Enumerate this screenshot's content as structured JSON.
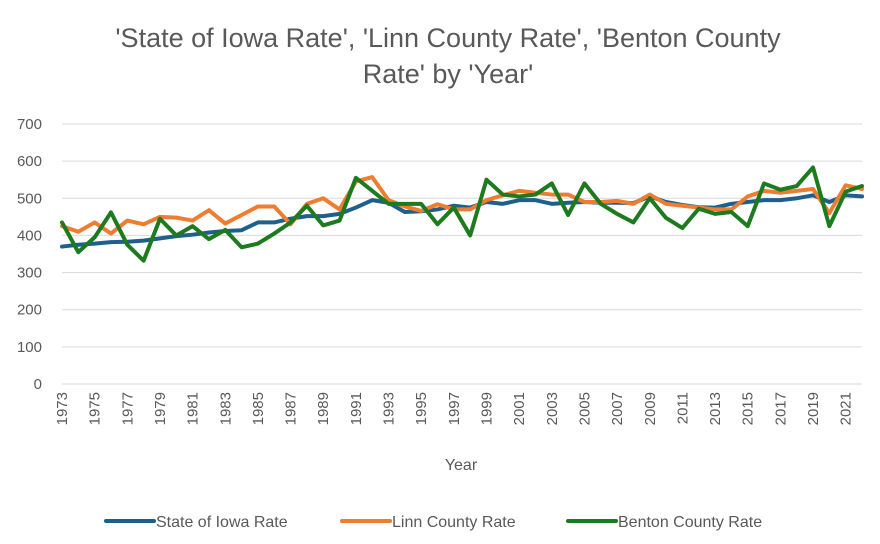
{
  "chart_data": {
    "type": "line",
    "title": [
      "'State of Iowa Rate', 'Linn County Rate', 'Benton County",
      "Rate' by 'Year'"
    ],
    "xlabel": "Year",
    "ylabel": "",
    "ylim": [
      0,
      700
    ],
    "yticks": [
      0,
      100,
      200,
      300,
      400,
      500,
      600,
      700
    ],
    "x": [
      1973,
      1974,
      1975,
      1976,
      1977,
      1978,
      1979,
      1980,
      1981,
      1982,
      1983,
      1984,
      1985,
      1986,
      1987,
      1988,
      1989,
      1990,
      1991,
      1992,
      1993,
      1994,
      1995,
      1996,
      1997,
      1998,
      1999,
      2000,
      2001,
      2002,
      2003,
      2004,
      2005,
      2006,
      2007,
      2008,
      2009,
      2010,
      2011,
      2012,
      2013,
      2014,
      2015,
      2016,
      2017,
      2018,
      2019,
      2020,
      2021,
      2022
    ],
    "xtick_labels": [
      "1973",
      "1975",
      "1977",
      "1979",
      "1981",
      "1983",
      "1985",
      "1987",
      "1989",
      "1991",
      "1993",
      "1995",
      "1997",
      "1999",
      "2001",
      "2003",
      "2005",
      "2007",
      "2009",
      "2011",
      "2013",
      "2015",
      "2017",
      "2019",
      "2021"
    ],
    "grid": true,
    "legend_position": "bottom",
    "series": [
      {
        "name": "State of Iowa Rate",
        "color": "#1f5f8b",
        "values": [
          370,
          375,
          378,
          382,
          383,
          386,
          392,
          398,
          402,
          408,
          412,
          414,
          435,
          435,
          445,
          452,
          452,
          458,
          475,
          495,
          488,
          463,
          465,
          470,
          480,
          475,
          490,
          485,
          495,
          495,
          485,
          488,
          490,
          488,
          488,
          487,
          505,
          490,
          482,
          476,
          475,
          485,
          490,
          495,
          495,
          500,
          508,
          490,
          508,
          505
        ]
      },
      {
        "name": "Linn County Rate",
        "color": "#ed7d31",
        "values": [
          425,
          410,
          435,
          405,
          440,
          430,
          450,
          448,
          440,
          468,
          432,
          455,
          478,
          478,
          430,
          485,
          500,
          470,
          545,
          557,
          495,
          478,
          466,
          484,
          470,
          470,
          495,
          508,
          520,
          515,
          510,
          510,
          490,
          490,
          493,
          485,
          510,
          485,
          480,
          475,
          470,
          470,
          505,
          520,
          515,
          520,
          525,
          460,
          535,
          525
        ]
      },
      {
        "name": "Benton County Rate",
        "color": "#1e7a1e",
        "values": [
          435,
          355,
          395,
          462,
          375,
          332,
          445,
          400,
          425,
          390,
          415,
          368,
          378,
          405,
          435,
          480,
          427,
          440,
          555,
          520,
          485,
          485,
          485,
          430,
          475,
          400,
          550,
          510,
          505,
          510,
          540,
          455,
          540,
          485,
          458,
          435,
          500,
          447,
          420,
          472,
          458,
          463,
          425,
          540,
          523,
          533,
          583,
          425,
          518,
          533
        ]
      }
    ]
  }
}
